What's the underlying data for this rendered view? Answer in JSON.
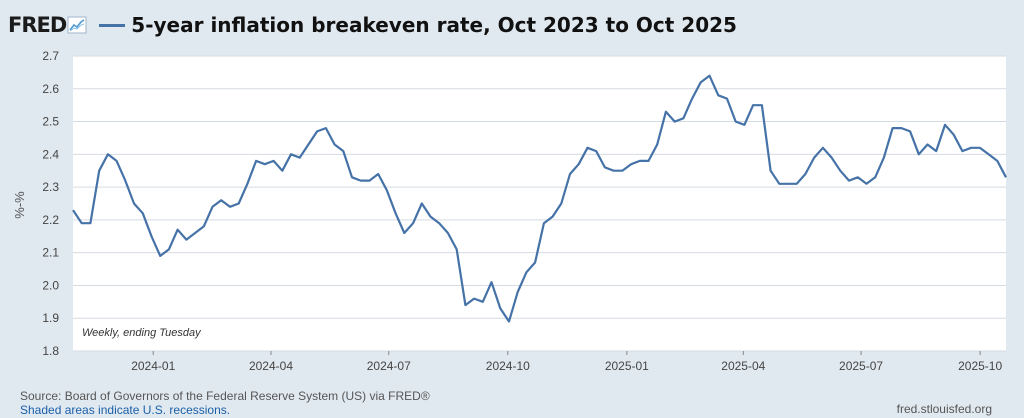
{
  "header": {
    "logo_text": "FRED",
    "title": "5-year inflation breakeven rate, Oct 2023 to Oct 2025"
  },
  "footer": {
    "source": "Source: Board of Governors of the Federal Reserve System (US) via FRED®",
    "shaded_note": "Shaded areas indicate U.S. recessions.",
    "site": "fred.stlouisfed.org"
  },
  "colors": {
    "line": "#4572a7",
    "background": "#e1e9f0",
    "plot": "#ffffff",
    "grid": "#d5dbe2"
  },
  "chart_data": {
    "type": "line",
    "title": "5-year inflation breakeven rate, Oct 2023 to Oct 2025",
    "ylabel": "%-%",
    "xlabel": "",
    "annotation": "Weekly, ending Tuesday",
    "ylim": [
      1.8,
      2.7
    ],
    "xlim": [
      "2023-10-31",
      "2025-10-21"
    ],
    "yticks": [
      1.8,
      1.9,
      2.0,
      2.1,
      2.2,
      2.3,
      2.4,
      2.5,
      2.6,
      2.7
    ],
    "xticks": [
      "2024-01",
      "2024-04",
      "2024-07",
      "2024-10",
      "2025-01",
      "2025-04",
      "2025-07",
      "2025-10"
    ],
    "grid": true,
    "series": [
      {
        "values": [
          2.23,
          2.19,
          2.19,
          2.35,
          2.4,
          2.38,
          2.32,
          2.25,
          2.22,
          2.15,
          2.09,
          2.11,
          2.17,
          2.14,
          2.16,
          2.18,
          2.24,
          2.26,
          2.24,
          2.25,
          2.31,
          2.38,
          2.37,
          2.38,
          2.35,
          2.4,
          2.39,
          2.43,
          2.47,
          2.48,
          2.43,
          2.41,
          2.33,
          2.32,
          2.32,
          2.34,
          2.29,
          2.22,
          2.16,
          2.19,
          2.25,
          2.21,
          2.19,
          2.16,
          2.11,
          1.94,
          1.96,
          1.95,
          2.01,
          1.93,
          1.89,
          1.98,
          2.04,
          2.07,
          2.19,
          2.21,
          2.25,
          2.34,
          2.37,
          2.42,
          2.41,
          2.36,
          2.35,
          2.35,
          2.37,
          2.38,
          2.38,
          2.43,
          2.53,
          2.5,
          2.51,
          2.57,
          2.62,
          2.64,
          2.58,
          2.57,
          2.5,
          2.49,
          2.55,
          2.55,
          2.35,
          2.31,
          2.31,
          2.31,
          2.34,
          2.39,
          2.42,
          2.39,
          2.35,
          2.32,
          2.33,
          2.31,
          2.33,
          2.39,
          2.48,
          2.48,
          2.47,
          2.4,
          2.43,
          2.41,
          2.49,
          2.46,
          2.41,
          2.42,
          2.42,
          2.4,
          2.38,
          2.33
        ]
      }
    ]
  }
}
